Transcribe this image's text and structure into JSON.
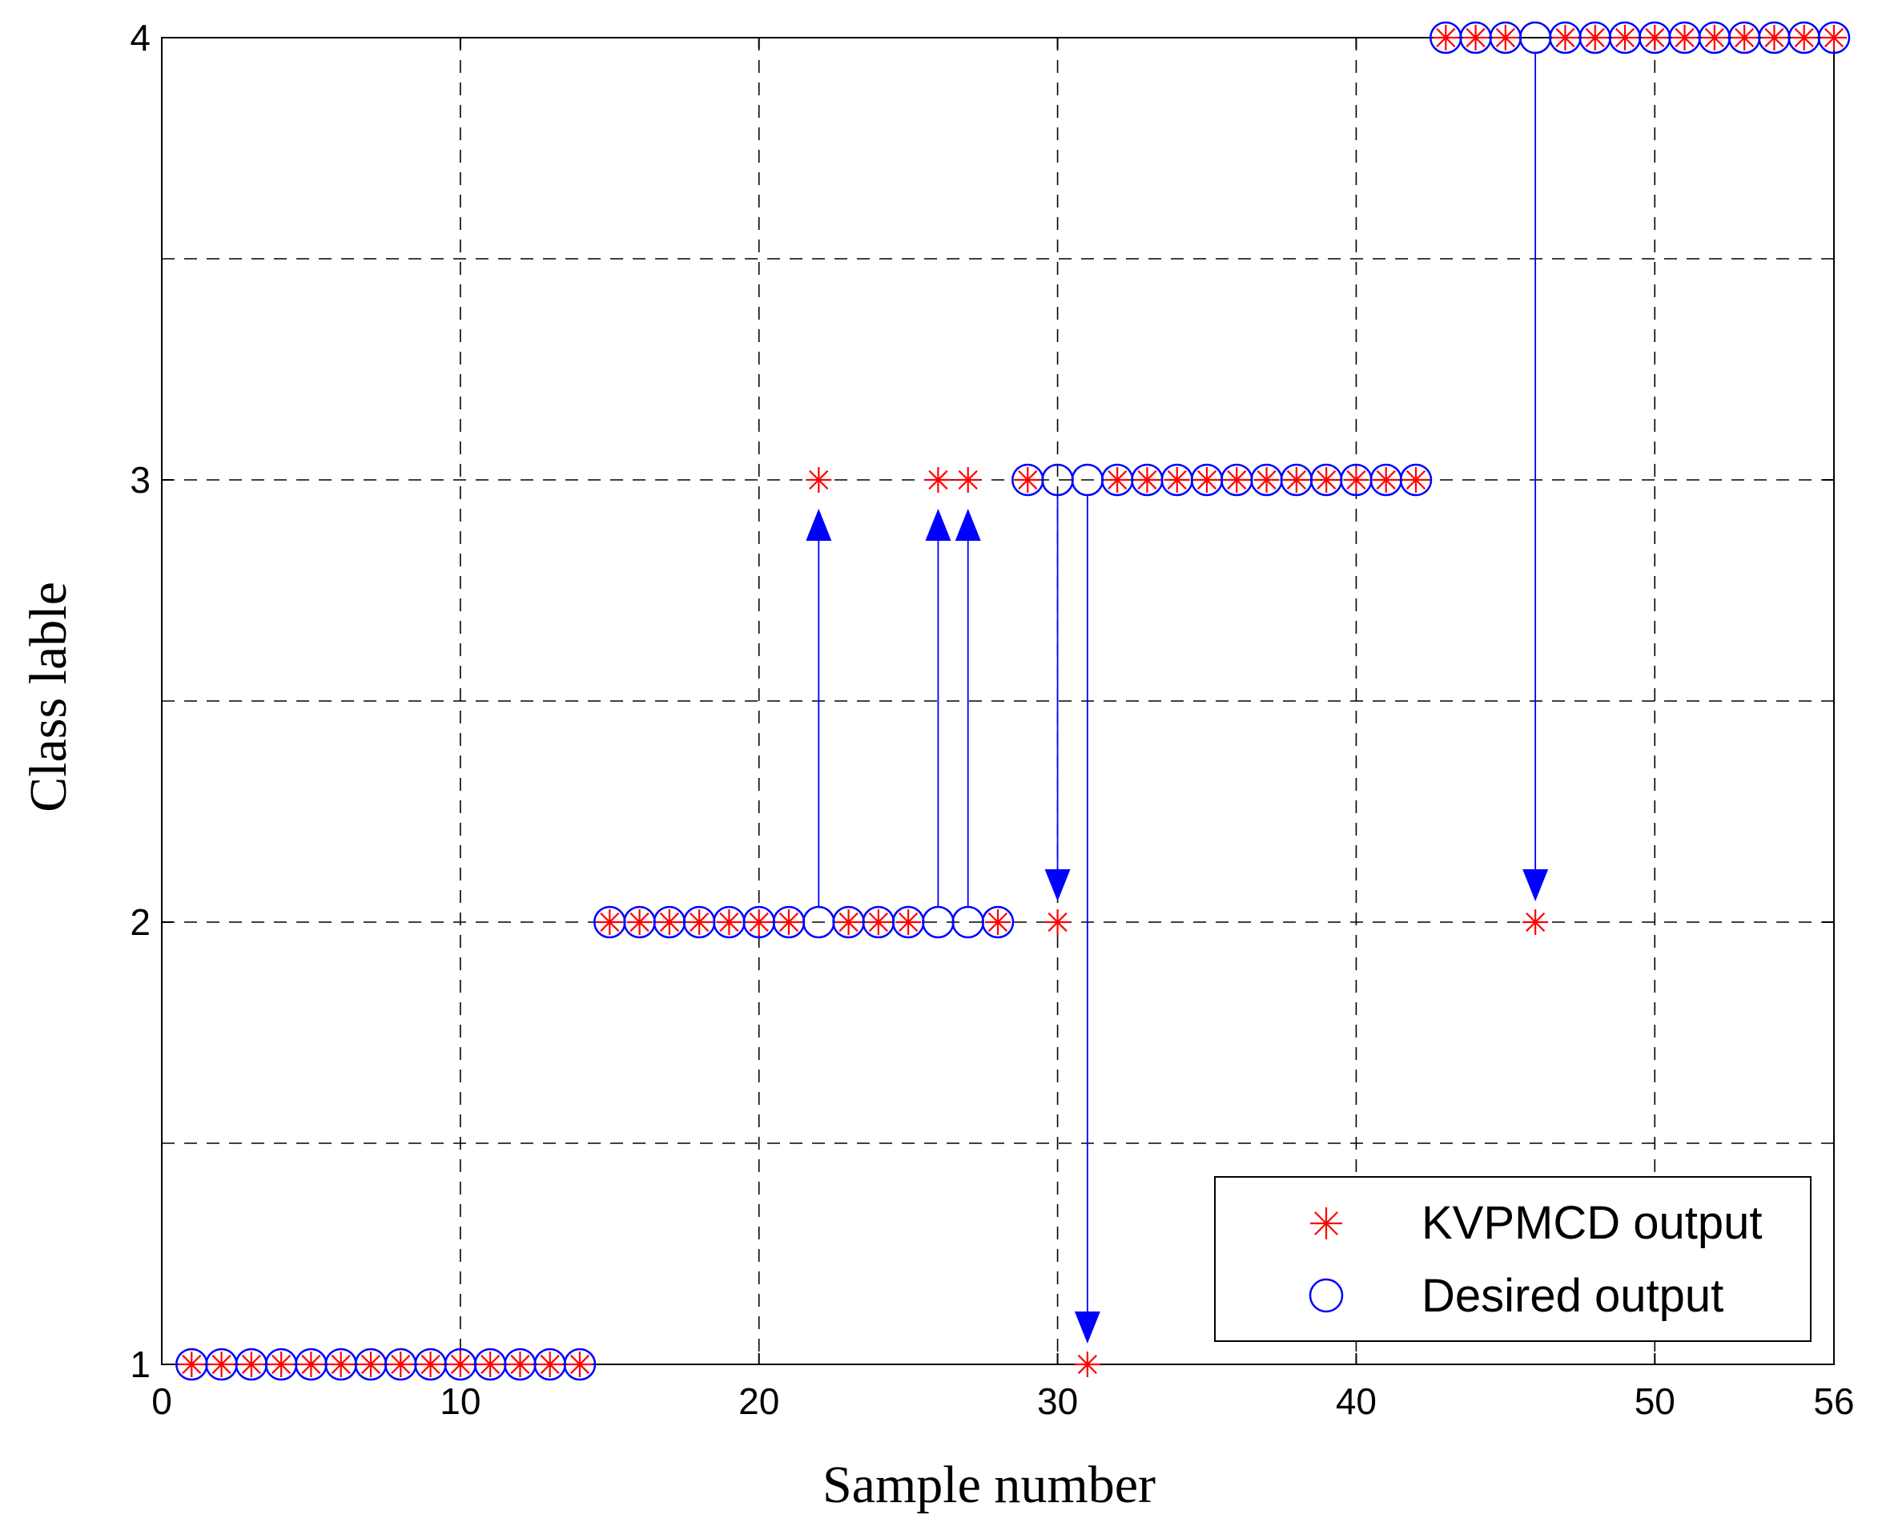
{
  "chart_data": {
    "type": "scatter",
    "title": "",
    "xlabel": "Sample number",
    "ylabel": "Class lable",
    "xlim": [
      0,
      56
    ],
    "ylim": [
      1,
      4
    ],
    "x_ticks": [
      0,
      10,
      20,
      30,
      40,
      50,
      56
    ],
    "y_ticks": [
      1,
      2,
      3,
      4
    ],
    "grid": true,
    "legend_position": "bottom-right",
    "series": [
      {
        "name": "KVPMCD output",
        "marker": "asterisk",
        "color": "#ff0000",
        "x": [
          1,
          2,
          3,
          4,
          5,
          6,
          7,
          8,
          9,
          10,
          11,
          12,
          13,
          14,
          15,
          16,
          17,
          18,
          19,
          20,
          21,
          22,
          23,
          24,
          25,
          26,
          27,
          28,
          29,
          30,
          31,
          32,
          33,
          34,
          35,
          36,
          37,
          38,
          39,
          40,
          41,
          42,
          43,
          44,
          45,
          46,
          47,
          48,
          49,
          50,
          51,
          52,
          53,
          54,
          55,
          56
        ],
        "y": [
          1,
          1,
          1,
          1,
          1,
          1,
          1,
          1,
          1,
          1,
          1,
          1,
          1,
          1,
          2,
          2,
          2,
          2,
          2,
          2,
          2,
          3,
          2,
          2,
          2,
          3,
          3,
          2,
          3,
          2,
          1,
          3,
          3,
          3,
          3,
          3,
          3,
          3,
          3,
          3,
          3,
          3,
          4,
          4,
          4,
          2,
          4,
          4,
          4,
          4,
          4,
          4,
          4,
          4,
          4,
          4
        ]
      },
      {
        "name": "Desired output",
        "marker": "circle",
        "color": "#0000ff",
        "x": [
          1,
          2,
          3,
          4,
          5,
          6,
          7,
          8,
          9,
          10,
          11,
          12,
          13,
          14,
          15,
          16,
          17,
          18,
          19,
          20,
          21,
          22,
          23,
          24,
          25,
          26,
          27,
          28,
          29,
          30,
          31,
          32,
          33,
          34,
          35,
          36,
          37,
          38,
          39,
          40,
          41,
          42,
          43,
          44,
          45,
          46,
          47,
          48,
          49,
          50,
          51,
          52,
          53,
          54,
          55,
          56
        ],
        "y": [
          1,
          1,
          1,
          1,
          1,
          1,
          1,
          1,
          1,
          1,
          1,
          1,
          1,
          1,
          2,
          2,
          2,
          2,
          2,
          2,
          2,
          2,
          2,
          2,
          2,
          2,
          2,
          2,
          3,
          3,
          3,
          3,
          3,
          3,
          3,
          3,
          3,
          3,
          3,
          3,
          3,
          3,
          4,
          4,
          4,
          4,
          4,
          4,
          4,
          4,
          4,
          4,
          4,
          4,
          4,
          4
        ]
      }
    ],
    "annotations": [
      {
        "type": "arrow",
        "x": 22,
        "from": 2,
        "to": 3
      },
      {
        "type": "arrow",
        "x": 26,
        "from": 2,
        "to": 3
      },
      {
        "type": "arrow",
        "x": 27,
        "from": 2,
        "to": 3
      },
      {
        "type": "arrow",
        "x": 30,
        "from": 3,
        "to": 2
      },
      {
        "type": "arrow",
        "x": 31,
        "from": 3,
        "to": 1
      },
      {
        "type": "arrow",
        "x": 46,
        "from": 4,
        "to": 2
      }
    ],
    "colors": {
      "predicted": "#ff0000",
      "desired": "#0000ff",
      "arrow": "#0000ff",
      "grid": "#000000"
    }
  }
}
